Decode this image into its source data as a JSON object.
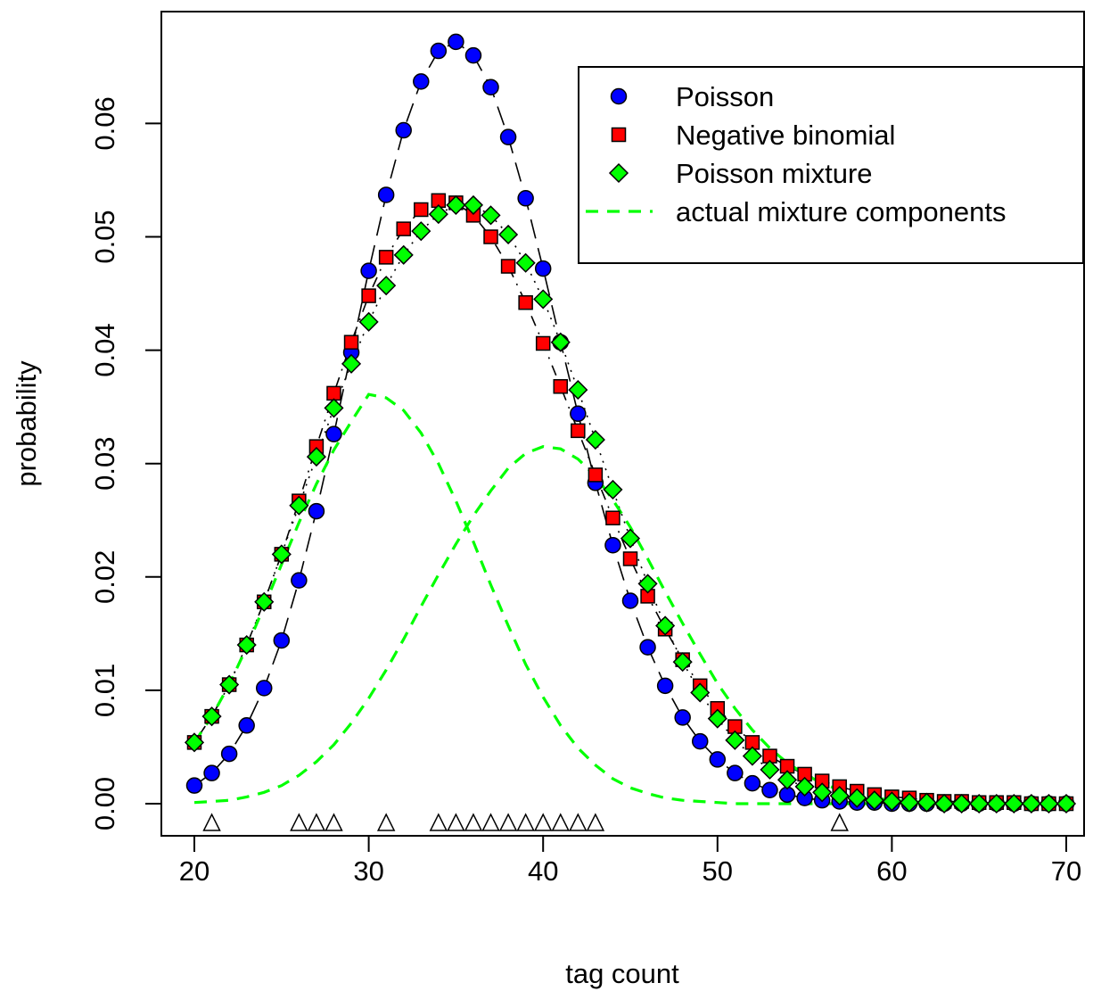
{
  "chart_data": {
    "type": "scatter",
    "title": "",
    "xlabel": "tag count",
    "ylabel": "probability",
    "xlim": [
      20,
      70
    ],
    "ylim": [
      0,
      0.067
    ],
    "x_ticks": [
      "20",
      "30",
      "40",
      "50",
      "60",
      "70"
    ],
    "y_ticks": [
      "0.00",
      "0.01",
      "0.02",
      "0.03",
      "0.04",
      "0.05",
      "0.06"
    ],
    "legend_position": "top-right",
    "x": [
      20,
      21,
      22,
      23,
      24,
      25,
      26,
      27,
      28,
      29,
      30,
      31,
      32,
      33,
      34,
      35,
      36,
      37,
      38,
      39,
      40,
      41,
      42,
      43,
      44,
      45,
      46,
      47,
      48,
      49,
      50,
      51,
      52,
      53,
      54,
      55,
      56,
      57,
      58,
      59,
      60,
      61,
      62,
      63,
      64,
      65,
      66,
      67,
      68,
      69,
      70
    ],
    "series": [
      {
        "name": "Poisson",
        "marker": "circle",
        "color": "#0000ff",
        "line": "longdash",
        "values": [
          0.0016,
          0.0027,
          0.0044,
          0.0069,
          0.0102,
          0.0144,
          0.0197,
          0.0258,
          0.0326,
          0.0398,
          0.047,
          0.0537,
          0.0594,
          0.0637,
          0.0664,
          0.0672,
          0.066,
          0.0632,
          0.0588,
          0.0534,
          0.0472,
          0.0407,
          0.0344,
          0.0283,
          0.0228,
          0.0179,
          0.0138,
          0.0104,
          0.0076,
          0.0055,
          0.0039,
          0.0027,
          0.0018,
          0.0012,
          0.0008,
          0.0005,
          0.0003,
          0.0002,
          0.0001,
          0.0001,
          0.0,
          0.0,
          0.0,
          0.0,
          0.0,
          0.0,
          0.0,
          0.0,
          0.0,
          0.0,
          0.0
        ]
      },
      {
        "name": "Negative binomial",
        "marker": "square",
        "color": "#ff0000",
        "line": "dotdash",
        "values": [
          0.0054,
          0.0077,
          0.0105,
          0.014,
          0.0178,
          0.022,
          0.0267,
          0.0315,
          0.0362,
          0.0407,
          0.0448,
          0.0482,
          0.0507,
          0.0524,
          0.0532,
          0.053,
          0.0519,
          0.05,
          0.0474,
          0.0442,
          0.0406,
          0.0368,
          0.0329,
          0.029,
          0.0252,
          0.0216,
          0.0183,
          0.0154,
          0.0127,
          0.0104,
          0.0084,
          0.0068,
          0.0054,
          0.0042,
          0.0033,
          0.0026,
          0.002,
          0.0015,
          0.0011,
          0.0008,
          0.0006,
          0.0005,
          0.0003,
          0.0002,
          0.0002,
          0.0001,
          0.0001,
          0.0001,
          0.0,
          0.0,
          0.0
        ]
      },
      {
        "name": "Poisson mixture",
        "marker": "diamond",
        "color": "#00ff00",
        "line": "dotted",
        "values": [
          0.0054,
          0.0077,
          0.0105,
          0.014,
          0.0178,
          0.022,
          0.0263,
          0.0306,
          0.0349,
          0.0388,
          0.0425,
          0.0457,
          0.0484,
          0.0505,
          0.052,
          0.0528,
          0.0528,
          0.0519,
          0.0502,
          0.0477,
          0.0445,
          0.0407,
          0.0365,
          0.0321,
          0.0277,
          0.0234,
          0.0194,
          0.0157,
          0.0125,
          0.0098,
          0.0075,
          0.0056,
          0.0042,
          0.003,
          0.0021,
          0.0015,
          0.001,
          0.0007,
          0.0005,
          0.0003,
          0.0002,
          0.0001,
          0.0001,
          0.0,
          0.0,
          0.0,
          0.0,
          0.0,
          0.0,
          0.0,
          0.0
        ]
      }
    ],
    "mixture_components": {
      "name": "actual mixture components",
      "color": "#00ff00",
      "line": "dashed",
      "curves": [
        {
          "x": [
            20,
            21,
            22,
            23,
            24,
            25,
            26,
            27,
            28,
            29,
            30,
            31,
            32,
            33,
            34,
            35,
            36,
            37,
            38,
            39,
            40,
            41,
            42,
            43,
            44,
            45,
            46,
            47,
            48,
            49,
            50,
            51,
            52,
            53,
            54,
            55,
            56,
            57,
            58,
            59,
            60,
            61,
            62,
            63,
            64,
            65,
            66,
            67,
            68,
            69,
            70
          ],
          "y": [
            0.0054,
            0.0077,
            0.0105,
            0.0138,
            0.0174,
            0.0211,
            0.0248,
            0.0282,
            0.0312,
            0.0337,
            0.0361,
            0.0358,
            0.0347,
            0.0327,
            0.03,
            0.0267,
            0.0231,
            0.0193,
            0.0157,
            0.0123,
            0.0094,
            0.0069,
            0.0049,
            0.0034,
            0.0022,
            0.0014,
            0.0009,
            0.0005,
            0.0003,
            0.0002,
            0.0001,
            0.0,
            0.0,
            0.0,
            0.0,
            0.0,
            0.0,
            0.0,
            0.0,
            0.0,
            0.0,
            0.0,
            0.0,
            0.0,
            0.0,
            0.0,
            0.0,
            0.0,
            0.0,
            0.0,
            0.0
          ]
        },
        {
          "x": [
            20,
            21,
            22,
            23,
            24,
            25,
            26,
            27,
            28,
            29,
            30,
            31,
            32,
            33,
            34,
            35,
            36,
            37,
            38,
            39,
            40,
            41,
            42,
            43,
            44,
            45,
            46,
            47,
            48,
            49,
            50,
            51,
            52,
            53,
            54,
            55,
            56,
            57,
            58,
            59,
            60,
            61,
            62,
            63,
            64,
            65,
            66,
            67,
            68,
            69,
            70
          ],
          "y": [
            0.0001,
            0.0002,
            0.0003,
            0.0006,
            0.001,
            0.0016,
            0.0025,
            0.0037,
            0.0052,
            0.0071,
            0.0093,
            0.0118,
            0.0145,
            0.0174,
            0.0202,
            0.0229,
            0.0254,
            0.0276,
            0.0296,
            0.0309,
            0.0315,
            0.0313,
            0.0304,
            0.0289,
            0.0268,
            0.0244,
            0.0216,
            0.0187,
            0.0159,
            0.0132,
            0.0106,
            0.0084,
            0.0065,
            0.0049,
            0.0036,
            0.0026,
            0.0018,
            0.0012,
            0.0008,
            0.0005,
            0.0003,
            0.0002,
            0.0001,
            0.0001,
            0.0,
            0.0,
            0.0,
            0.0,
            0.0,
            0.0,
            0.0
          ]
        }
      ]
    },
    "observations": [
      21,
      26,
      27,
      28,
      31,
      34,
      35,
      36,
      37,
      38,
      39,
      40,
      41,
      42,
      43,
      57
    ]
  }
}
